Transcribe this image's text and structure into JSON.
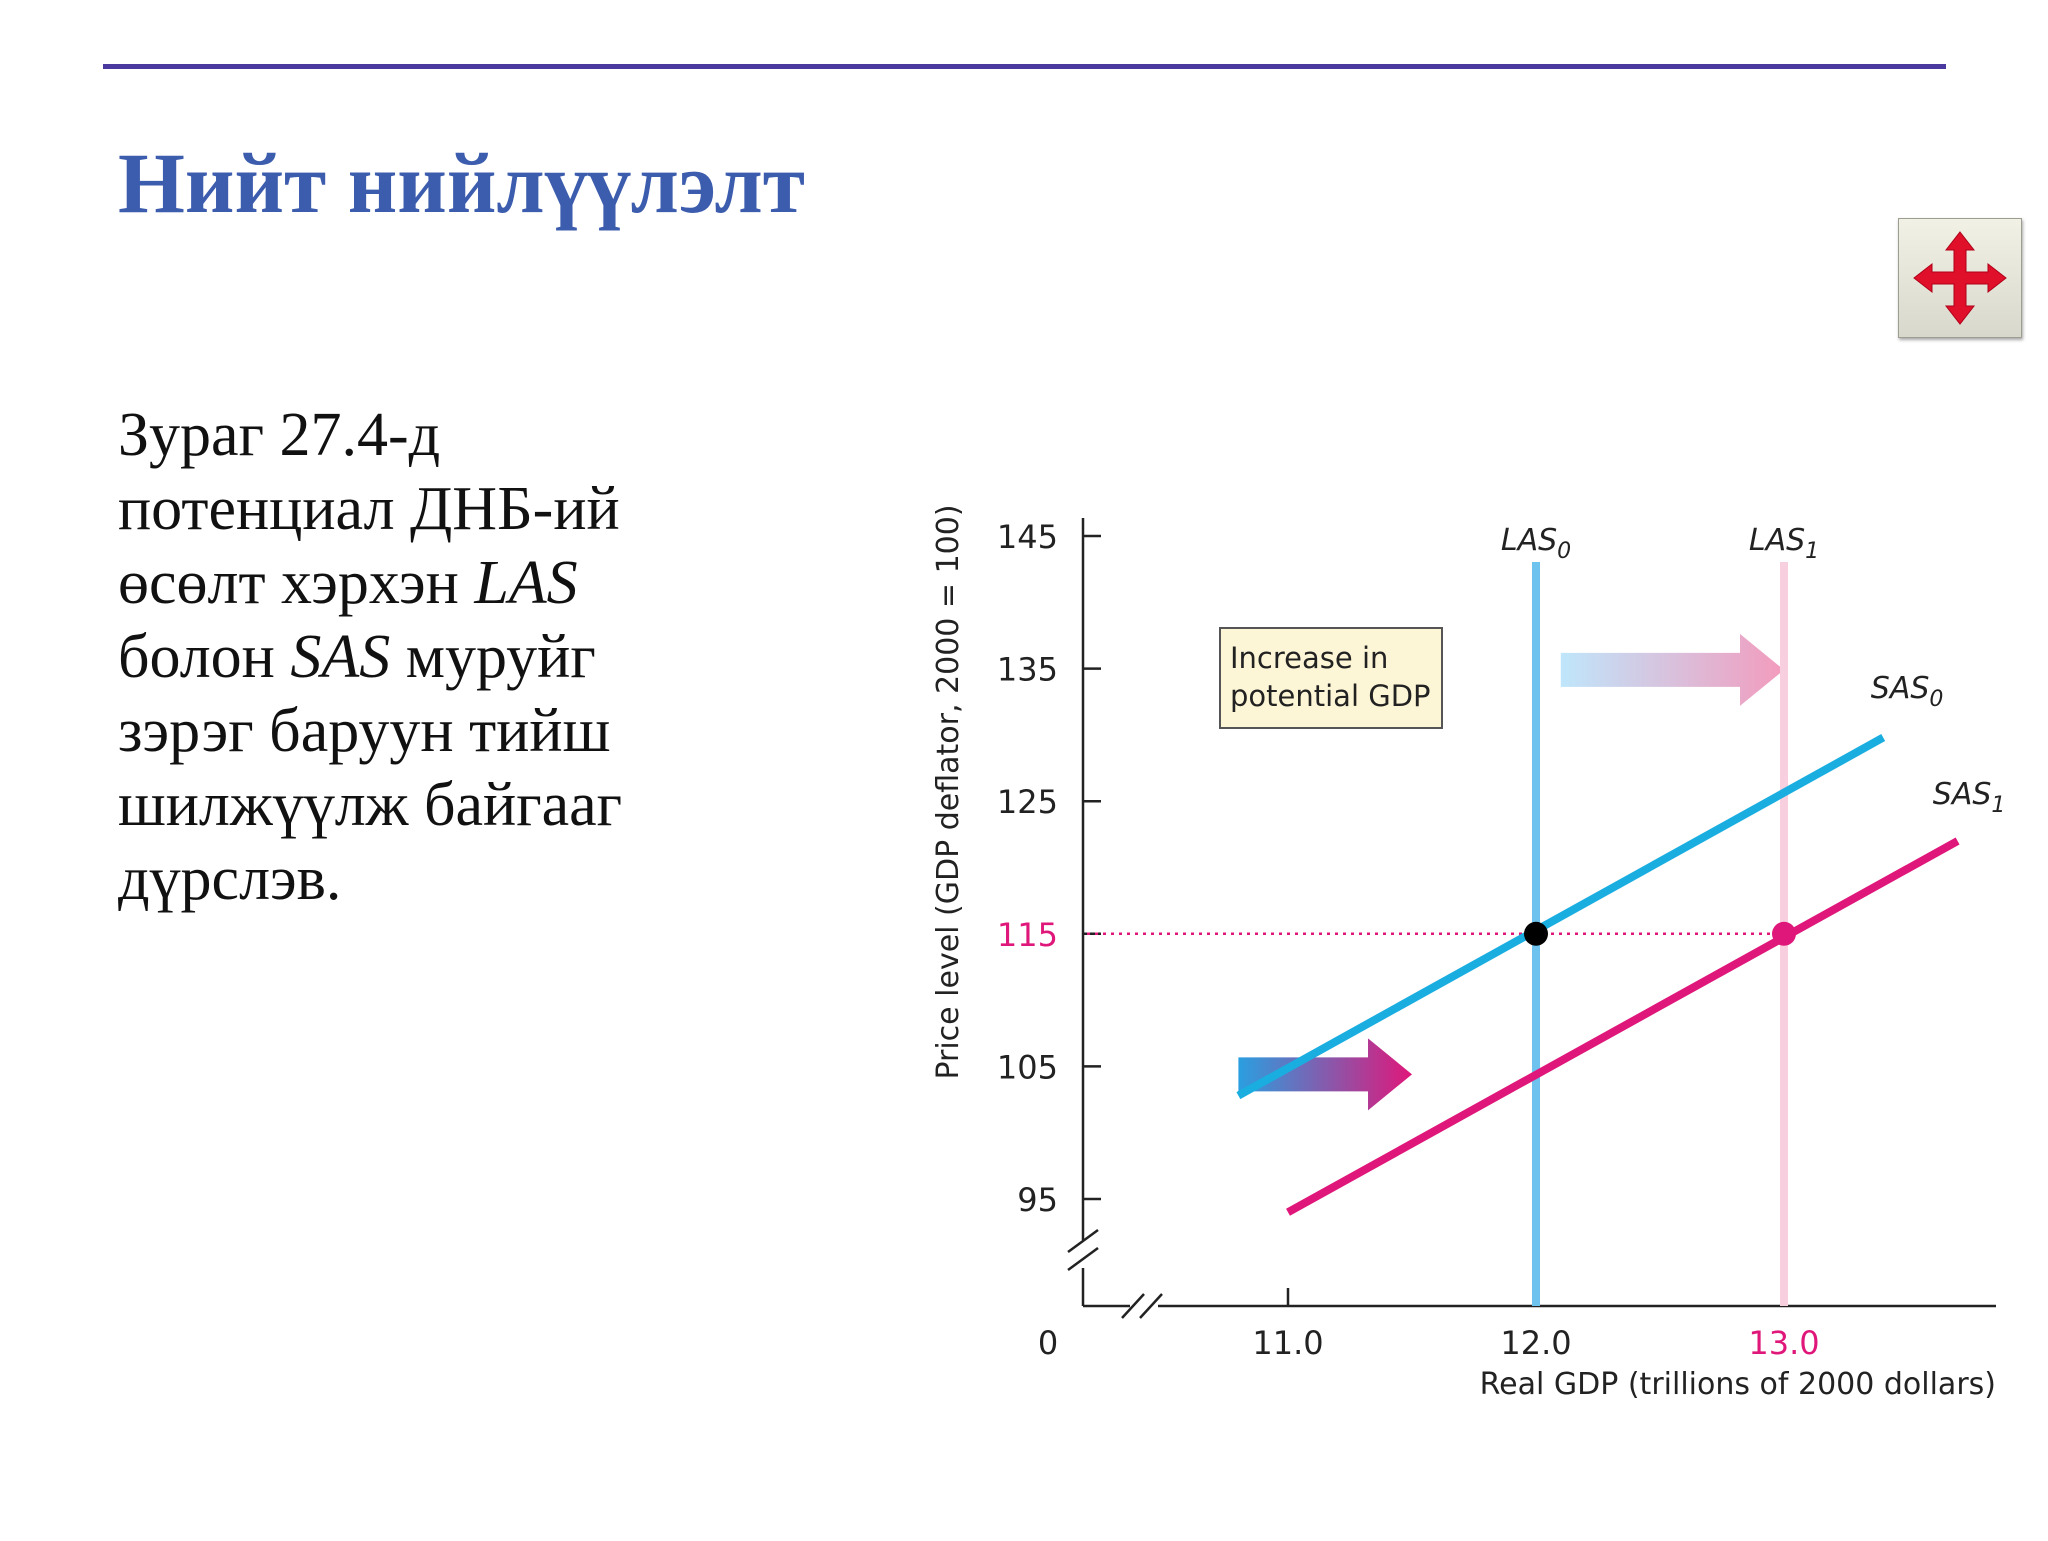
{
  "slide": {
    "title": "Нийт нийлүүлэлт",
    "body_segments": [
      {
        "text": "Зураг   27.4-д потенциал ДНБ-ий өсөлт хэрхэн ",
        "italic": false
      },
      {
        "text": "LAS",
        "italic": true
      },
      {
        "text": " болон ",
        "italic": false
      },
      {
        "text": "SAS",
        "italic": true
      },
      {
        "text": " муруйг зэрэг баруун тийш шилжүүлж байгааг дүрслэв.",
        "italic": false
      }
    ],
    "nav_icon": "four-way-move-arrows-icon"
  },
  "chart_data": {
    "type": "line",
    "title": "",
    "xlabel": "Real GDP (trillions of 2000 dollars)",
    "ylabel": "Price level (GDP deflator, 2000 = 100)",
    "origin_label": "0",
    "x_ticks": [
      {
        "value": 11.0,
        "label": "11.0",
        "color": "#222222"
      },
      {
        "value": 12.0,
        "label": "12.0",
        "color": "#222222"
      },
      {
        "value": 13.0,
        "label": "13.0",
        "color": "#e0177a"
      }
    ],
    "y_ticks": [
      {
        "value": 95,
        "label": "95",
        "color": "#222222"
      },
      {
        "value": 105,
        "label": "105",
        "color": "#222222"
      },
      {
        "value": 115,
        "label": "115",
        "color": "#e0177a"
      },
      {
        "value": 125,
        "label": "125",
        "color": "#222222"
      },
      {
        "value": 135,
        "label": "135",
        "color": "#222222"
      },
      {
        "value": 145,
        "label": "145",
        "color": "#222222"
      }
    ],
    "xlim": [
      10.0,
      13.9
    ],
    "ylim": [
      87,
      146
    ],
    "axis_breaks": true,
    "series": [
      {
        "name": "LAS",
        "sub": "0",
        "kind": "vertical",
        "x": 12.0,
        "color": "#6ec3ee",
        "width": 8
      },
      {
        "name": "LAS",
        "sub": "1",
        "kind": "vertical",
        "x": 13.0,
        "color": "#f8cfdf",
        "width": 8
      },
      {
        "name": "SAS",
        "sub": "0",
        "kind": "line",
        "points": [
          [
            10.8,
            102.8
          ],
          [
            13.4,
            129.8
          ]
        ],
        "color": "#1aaee0",
        "width": 8,
        "label_at": [
          13.35,
          132.8
        ]
      },
      {
        "name": "SAS",
        "sub": "1",
        "kind": "line",
        "points": [
          [
            11.0,
            94.0
          ],
          [
            13.7,
            122.0
          ]
        ],
        "color": "#e0177a",
        "width": 8,
        "label_at": [
          13.6,
          124.8
        ]
      }
    ],
    "equilibria": [
      {
        "x": 12.0,
        "y": 115,
        "color": "#000000"
      },
      {
        "x": 13.0,
        "y": 115,
        "color": "#e0177a"
      }
    ],
    "reference_line": {
      "y": 115,
      "from_x": 10.0,
      "to_x": 13.0,
      "color": "#e0177a",
      "style": "dotted"
    },
    "annotation": {
      "text_lines": [
        "Increase in",
        "potential GDP"
      ],
      "bg": "#fdf6d6",
      "border": "#555555"
    },
    "shift_arrows": [
      {
        "from": [
          12.1,
          134.9
        ],
        "to": [
          13.0,
          134.9
        ],
        "color_from": "#bfe6fb",
        "color_to": "#f39bbd"
      },
      {
        "from": [
          10.8,
          104.4
        ],
        "to": [
          11.5,
          104.4
        ],
        "color_from": "#2a9fe0",
        "color_to": "#e0177a"
      }
    ]
  }
}
